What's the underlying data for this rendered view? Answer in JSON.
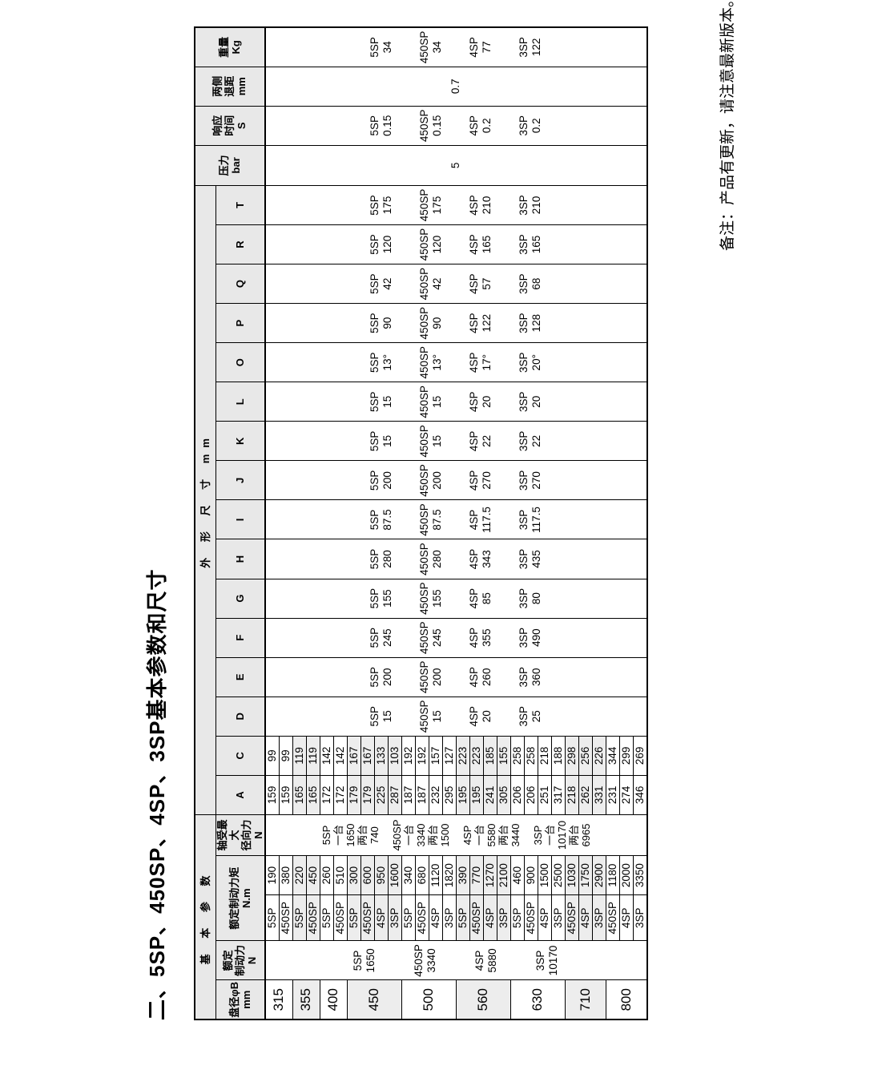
{
  "page": {
    "title": "二、5SP、450SP、4SP、3SP基本参数和尺寸",
    "note": "备注：产品有更新，请注意最新版本。"
  },
  "table": {
    "columns": {
      "group_basic": "基 本 参 数",
      "group_dims": "外 形 尺 寸 mm",
      "diameter": [
        "盘径φB",
        "mm"
      ],
      "brake_force": [
        "额定",
        "制动力",
        "N"
      ],
      "brake_torque": [
        "额定制动力矩",
        "N.m"
      ],
      "radial_force": [
        "轴受最大",
        "径向力",
        "N"
      ],
      "dim_letters": [
        "A",
        "C",
        "D",
        "E",
        "F",
        "G",
        "H",
        "I",
        "J",
        "K",
        "L",
        "O",
        "P",
        "Q",
        "R",
        "T"
      ],
      "pressure": [
        "压力",
        "bar"
      ],
      "response": [
        "响应",
        "时间",
        "S"
      ],
      "clearance": [
        "两侧",
        "退距",
        "mm"
      ],
      "weight": [
        "重量",
        "Kg"
      ]
    },
    "groups": [
      {
        "diameter": "315",
        "shaded": false,
        "subrows": [
          {
            "sp": "5SP",
            "torque": "190",
            "A": "159",
            "C": "99"
          },
          {
            "sp": "450SP",
            "torque": "380",
            "A": "159",
            "C": "99"
          }
        ]
      },
      {
        "diameter": "355",
        "shaded": true,
        "subrows": [
          {
            "sp": "5SP",
            "torque": "220",
            "A": "165",
            "C": "119"
          },
          {
            "sp": "450SP",
            "torque": "450",
            "A": "165",
            "C": "119"
          }
        ]
      },
      {
        "diameter": "400",
        "shaded": false,
        "subrows": [
          {
            "sp": "5SP",
            "torque": "260",
            "A": "172",
            "C": "142"
          },
          {
            "sp": "450SP",
            "torque": "510",
            "A": "172",
            "C": "142"
          }
        ]
      },
      {
        "diameter": "450",
        "shaded": true,
        "subrows": [
          {
            "sp": "5SP",
            "torque": "300",
            "A": "179",
            "C": "167"
          },
          {
            "sp": "450SP",
            "torque": "600",
            "A": "179",
            "C": "167"
          },
          {
            "sp": "4SP",
            "torque": "950",
            "A": "225",
            "C": "133"
          },
          {
            "sp": "3SP",
            "torque": "1600",
            "A": "287",
            "C": "103"
          }
        ]
      },
      {
        "diameter": "500",
        "shaded": false,
        "subrows": [
          {
            "sp": "5SP",
            "torque": "340",
            "A": "187",
            "C": "192"
          },
          {
            "sp": "450SP",
            "torque": "680",
            "A": "187",
            "C": "192"
          },
          {
            "sp": "4SP",
            "torque": "1120",
            "A": "232",
            "C": "157"
          },
          {
            "sp": "3SP",
            "torque": "1820",
            "A": "295",
            "C": "127"
          }
        ]
      },
      {
        "diameter": "560",
        "shaded": true,
        "subrows": [
          {
            "sp": "5SP",
            "torque": "390",
            "A": "195",
            "C": "223"
          },
          {
            "sp": "450SP",
            "torque": "770",
            "A": "195",
            "C": "223"
          },
          {
            "sp": "4SP",
            "torque": "1270",
            "A": "241",
            "C": "185"
          },
          {
            "sp": "3SP",
            "torque": "2100",
            "A": "305",
            "C": "155"
          }
        ]
      },
      {
        "diameter": "630",
        "shaded": false,
        "subrows": [
          {
            "sp": "5SP",
            "torque": "460",
            "A": "206",
            "C": "258"
          },
          {
            "sp": "450SP",
            "torque": "900",
            "A": "206",
            "C": "258"
          },
          {
            "sp": "4SP",
            "torque": "1500",
            "A": "251",
            "C": "218"
          },
          {
            "sp": "3SP",
            "torque": "2500",
            "A": "317",
            "C": "188"
          }
        ]
      },
      {
        "diameter": "710",
        "shaded": true,
        "subrows": [
          {
            "sp": "450SP",
            "torque": "1030",
            "A": "218",
            "C": "298"
          },
          {
            "sp": "4SP",
            "torque": "1750",
            "A": "262",
            "C": "256"
          },
          {
            "sp": "3SP",
            "torque": "2900",
            "A": "331",
            "C": "226"
          }
        ]
      },
      {
        "diameter": "800",
        "shaded": false,
        "subrows": [
          {
            "sp": "450SP",
            "torque": "1180",
            "A": "231",
            "C": "344"
          },
          {
            "sp": "4SP",
            "torque": "2000",
            "A": "274",
            "C": "299"
          },
          {
            "sp": "3SP",
            "torque": "3350",
            "A": "346",
            "C": "269"
          }
        ]
      }
    ],
    "merged": {
      "brake_force": [
        [
          "5SP",
          "1650"
        ],
        [
          "450SP",
          "3340"
        ],
        [
          "4SP",
          "5880"
        ],
        [
          "3SP",
          "10170"
        ]
      ],
      "radial_force": [
        [
          "5SP",
          "一台",
          "1650",
          "两台",
          "740"
        ],
        [
          "450SP",
          "一台",
          "3340",
          "两台",
          "1500"
        ],
        [
          "4SP",
          "一台",
          "5580",
          "两台",
          "3440"
        ],
        [
          "3SP",
          "一台",
          "10170",
          "两台",
          "6965"
        ]
      ],
      "dims": {
        "D": [
          [
            "5SP",
            "15"
          ],
          [
            "450SP",
            "15"
          ],
          [
            "4SP",
            "20"
          ],
          [
            "3SP",
            "25"
          ]
        ],
        "E": [
          [
            "5SP",
            "200"
          ],
          [
            "450SP",
            "200"
          ],
          [
            "4SP",
            "260"
          ],
          [
            "3SP",
            "360"
          ]
        ],
        "F": [
          [
            "5SP",
            "245"
          ],
          [
            "450SP",
            "245"
          ],
          [
            "4SP",
            "355"
          ],
          [
            "3SP",
            "490"
          ]
        ],
        "G": [
          [
            "5SP",
            "155"
          ],
          [
            "450SP",
            "155"
          ],
          [
            "4SP",
            "85"
          ],
          [
            "3SP",
            "80"
          ]
        ],
        "H": [
          [
            "5SP",
            "280"
          ],
          [
            "450SP",
            "280"
          ],
          [
            "4SP",
            "343"
          ],
          [
            "3SP",
            "435"
          ]
        ],
        "I": [
          [
            "5SP",
            "87.5"
          ],
          [
            "450SP",
            "87.5"
          ],
          [
            "4SP",
            "117.5"
          ],
          [
            "3SP",
            "117.5"
          ]
        ],
        "J": [
          [
            "5SP",
            "200"
          ],
          [
            "450SP",
            "200"
          ],
          [
            "4SP",
            "270"
          ],
          [
            "3SP",
            "270"
          ]
        ],
        "K": [
          [
            "5SP",
            "15"
          ],
          [
            "450SP",
            "15"
          ],
          [
            "4SP",
            "22"
          ],
          [
            "3SP",
            "22"
          ]
        ],
        "L": [
          [
            "5SP",
            "15"
          ],
          [
            "450SP",
            "15"
          ],
          [
            "4SP",
            "20"
          ],
          [
            "3SP",
            "20"
          ]
        ],
        "O": [
          [
            "5SP",
            "13°"
          ],
          [
            "450SP",
            "13°"
          ],
          [
            "4SP",
            "17°"
          ],
          [
            "3SP",
            "20°"
          ]
        ],
        "P": [
          [
            "5SP",
            "90"
          ],
          [
            "450SP",
            "90"
          ],
          [
            "4SP",
            "122"
          ],
          [
            "3SP",
            "128"
          ]
        ],
        "Q": [
          [
            "5SP",
            "42"
          ],
          [
            "450SP",
            "42"
          ],
          [
            "4SP",
            "57"
          ],
          [
            "3SP",
            "68"
          ]
        ],
        "R": [
          [
            "5SP",
            "120"
          ],
          [
            "450SP",
            "120"
          ],
          [
            "4SP",
            "165"
          ],
          [
            "3SP",
            "165"
          ]
        ],
        "T": [
          [
            "5SP",
            "175"
          ],
          [
            "450SP",
            "175"
          ],
          [
            "4SP",
            "210"
          ],
          [
            "3SP",
            "210"
          ]
        ]
      },
      "pressure": "5",
      "response": [
        [
          "5SP",
          "0.15"
        ],
        [
          "450SP",
          "0.15"
        ],
        [
          "4SP",
          "0.2"
        ],
        [
          "3SP",
          "0.2"
        ]
      ],
      "clearance": "0.7",
      "weight": [
        [
          "5SP",
          "34"
        ],
        [
          "450SP",
          "34"
        ],
        [
          "4SP",
          "77"
        ],
        [
          "3SP",
          "122"
        ]
      ]
    }
  }
}
